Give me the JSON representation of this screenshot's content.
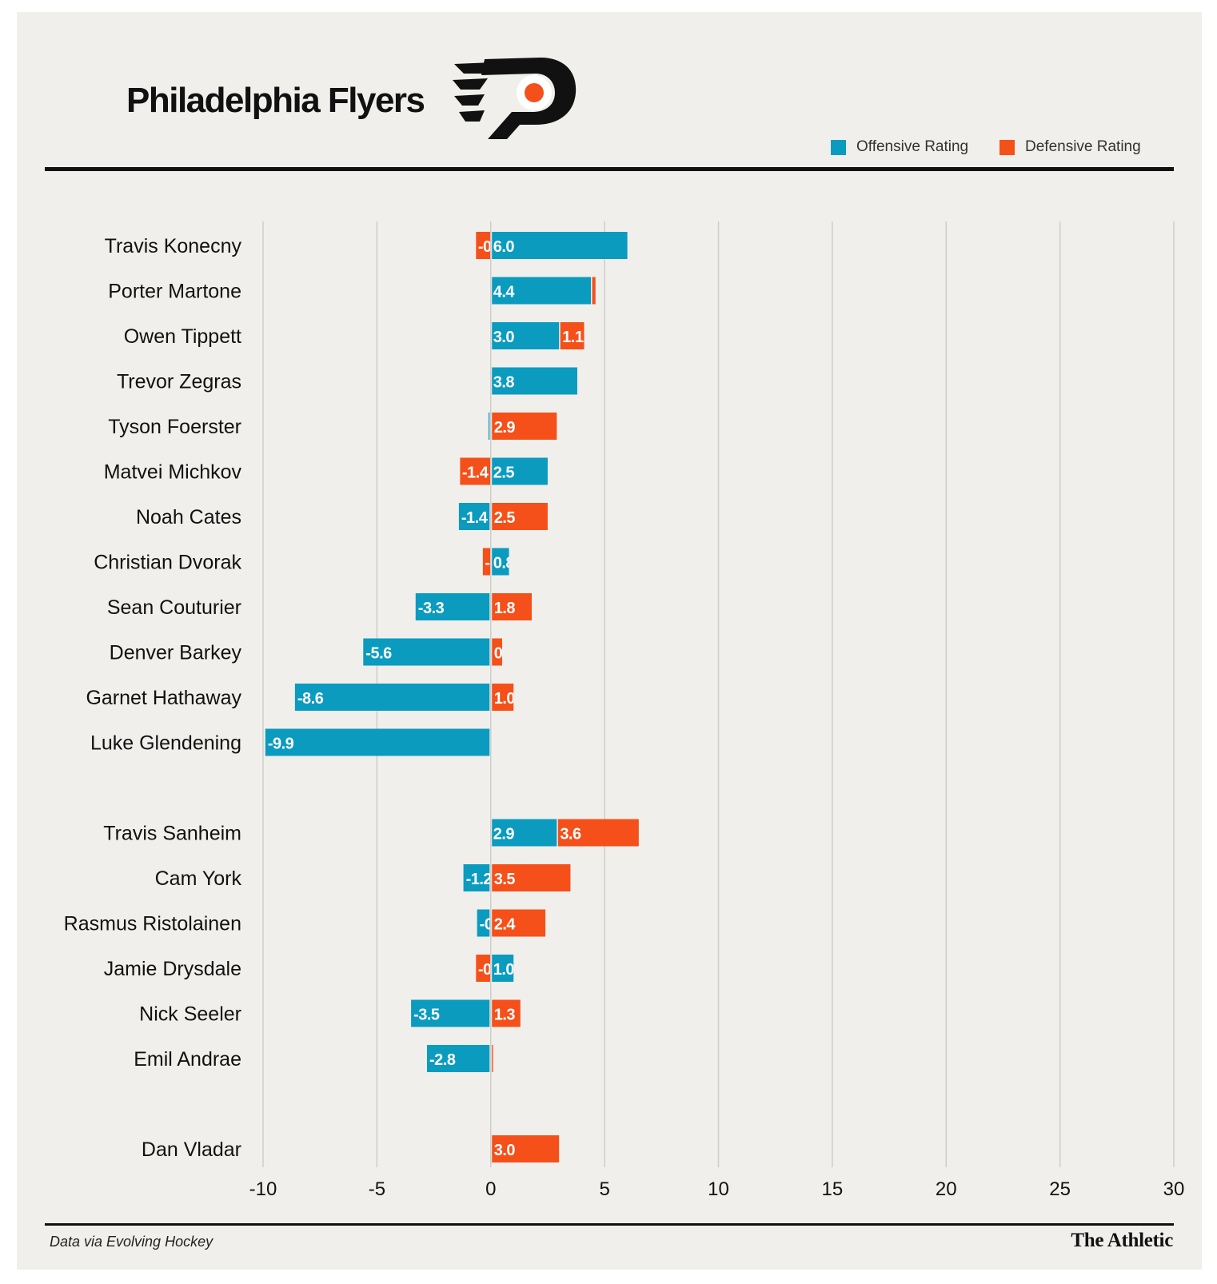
{
  "header": {
    "title": "Philadelphia Flyers"
  },
  "legend": {
    "offensive_label": "Offensive Rating",
    "defensive_label": "Defensive Rating"
  },
  "colors": {
    "offensive": "#0a9bbf",
    "defensive": "#f5501a",
    "background": "#f0efec",
    "gridline": "#cfcdca",
    "text": "#111111"
  },
  "footer": {
    "source": "Data via Evolving Hockey",
    "brand": "The Athletic"
  },
  "chart_data": {
    "type": "bar",
    "orientation": "horizontal",
    "stacking": "diverging",
    "xlim": [
      -10,
      30
    ],
    "xticks": [
      -10,
      -5,
      0,
      5,
      10,
      15,
      20,
      25,
      30
    ],
    "grid": true,
    "legend_position": "top-right",
    "groups": [
      {
        "players": [
          {
            "name": "Travis Konecny",
            "offensive": 6.0,
            "defensive": -0.7
          },
          {
            "name": "Porter Martone",
            "offensive": 4.4,
            "defensive": 0.2
          },
          {
            "name": "Owen Tippett",
            "offensive": 3.0,
            "defensive": 1.1
          },
          {
            "name": "Trevor Zegras",
            "offensive": 3.8,
            "defensive": 0.0
          },
          {
            "name": "Tyson Foerster",
            "offensive": -0.1,
            "defensive": 2.9
          },
          {
            "name": "Matvei Michkov",
            "offensive": 2.5,
            "defensive": -1.4
          },
          {
            "name": "Noah Cates",
            "offensive": -1.4,
            "defensive": 2.5
          },
          {
            "name": "Christian Dvorak",
            "offensive": 0.8,
            "defensive": -0.4
          },
          {
            "name": "Sean Couturier",
            "offensive": -3.3,
            "defensive": 1.8
          },
          {
            "name": "Denver Barkey",
            "offensive": -5.6,
            "defensive": 0.5
          },
          {
            "name": "Garnet Hathaway",
            "offensive": -8.6,
            "defensive": 1.0
          },
          {
            "name": "Luke Glendening",
            "offensive": -9.9,
            "defensive": 0.0
          }
        ]
      },
      {
        "players": [
          {
            "name": "Travis Sanheim",
            "offensive": 2.9,
            "defensive": 3.6
          },
          {
            "name": "Cam York",
            "offensive": -1.2,
            "defensive": 3.5
          },
          {
            "name": "Rasmus Ristolainen",
            "offensive": -0.6,
            "defensive": 2.4
          },
          {
            "name": "Jamie Drysdale",
            "offensive": 1.0,
            "defensive": -0.7
          },
          {
            "name": "Nick Seeler",
            "offensive": -3.5,
            "defensive": 1.3
          },
          {
            "name": "Emil Andrae",
            "offensive": -2.8,
            "defensive": 0.1
          }
        ]
      },
      {
        "players": [
          {
            "name": "Dan Vladar",
            "offensive": 0.0,
            "defensive": 3.0
          }
        ]
      }
    ]
  }
}
